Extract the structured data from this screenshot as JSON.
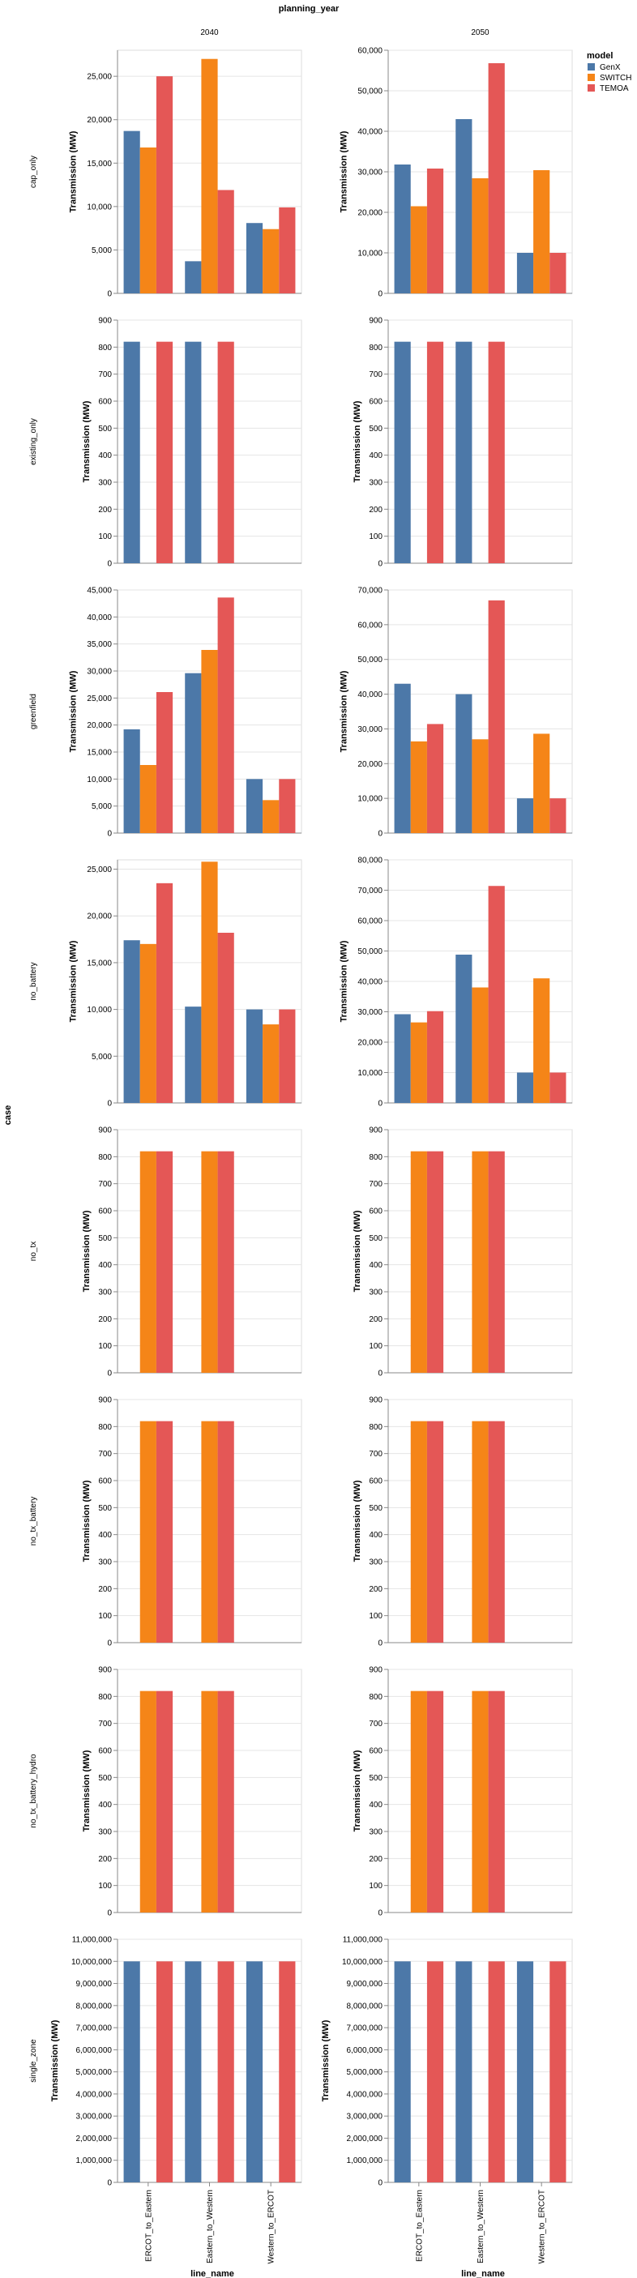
{
  "col_title": "planning_year",
  "row_title": "case",
  "x_title": "line_name",
  "y_title": "Transmission (MW)",
  "legend": {
    "title": "model",
    "items": [
      {
        "label": "GenX",
        "color": "#4C78A8"
      },
      {
        "label": "SWITCH",
        "color": "#F58518"
      },
      {
        "label": "TEMOA",
        "color": "#E45756"
      }
    ]
  },
  "chart_data": {
    "type": "bar",
    "categories": [
      "ERCOT_to_Eastern",
      "Eastern_to_Western",
      "Western_to_ERCOT"
    ],
    "columns": [
      "2040",
      "2050"
    ],
    "series_names": [
      "GenX",
      "SWITCH",
      "TEMOA"
    ],
    "colors": [
      "#4C78A8",
      "#F58518",
      "#E45756"
    ],
    "rows": [
      {
        "case": "cap_only",
        "panels": [
          {
            "ticks": [
              "0",
              "5,000",
              "10,000",
              "15,000",
              "20,000",
              "25,000"
            ],
            "ymax": 28000,
            "values": [
              [
                18700,
                3700,
                8100
              ],
              [
                16800,
                27000,
                7400
              ],
              [
                25000,
                11900,
                9900
              ]
            ]
          },
          {
            "ticks": [
              "0",
              "10,000",
              "20,000",
              "30,000",
              "40,000",
              "50,000",
              "60,000"
            ],
            "ymax": 60000,
            "values": [
              [
                31800,
                43000,
                10000
              ],
              [
                21500,
                28400,
                30400
              ],
              [
                30800,
                56800,
                10000
              ]
            ]
          }
        ]
      },
      {
        "case": "existing_only",
        "panels": [
          {
            "ticks": [
              "0",
              "100",
              "200",
              "300",
              "400",
              "500",
              "600",
              "700",
              "800",
              "900"
            ],
            "ymax": 900,
            "values": [
              [
                820,
                820,
                0
              ],
              [
                0,
                0,
                0
              ],
              [
                820,
                820,
                0
              ]
            ]
          },
          {
            "ticks": [
              "0",
              "100",
              "200",
              "300",
              "400",
              "500",
              "600",
              "700",
              "800",
              "900"
            ],
            "ymax": 900,
            "values": [
              [
                820,
                820,
                0
              ],
              [
                0,
                0,
                0
              ],
              [
                820,
                820,
                0
              ]
            ]
          }
        ]
      },
      {
        "case": "greenfield",
        "panels": [
          {
            "ticks": [
              "0",
              "5,000",
              "10,000",
              "15,000",
              "20,000",
              "25,000",
              "30,000",
              "35,000",
              "40,000",
              "45,000"
            ],
            "ymax": 45000,
            "values": [
              [
                19200,
                29600,
                10000
              ],
              [
                12600,
                33900,
                6100
              ],
              [
                26100,
                43600,
                10000
              ]
            ]
          },
          {
            "ticks": [
              "0",
              "10,000",
              "20,000",
              "30,000",
              "40,000",
              "50,000",
              "60,000",
              "70,000"
            ],
            "ymax": 70000,
            "values": [
              [
                43000,
                40000,
                10000
              ],
              [
                26400,
                27000,
                28600
              ],
              [
                31400,
                67000,
                10000
              ]
            ]
          }
        ]
      },
      {
        "case": "no_battery",
        "panels": [
          {
            "ticks": [
              "0",
              "5,000",
              "10,000",
              "15,000",
              "20,000",
              "25,000"
            ],
            "ymax": 26000,
            "values": [
              [
                17400,
                10300,
                10000
              ],
              [
                17000,
                25800,
                8400
              ],
              [
                23500,
                18200,
                10000
              ]
            ]
          },
          {
            "ticks": [
              "0",
              "10,000",
              "20,000",
              "30,000",
              "40,000",
              "50,000",
              "60,000",
              "70,000",
              "80,000"
            ],
            "ymax": 80000,
            "values": [
              [
                29200,
                48800,
                10000
              ],
              [
                26500,
                38000,
                41000
              ],
              [
                30200,
                71400,
                10000
              ]
            ]
          }
        ]
      },
      {
        "case": "no_tx",
        "panels": [
          {
            "ticks": [
              "0",
              "100",
              "200",
              "300",
              "400",
              "500",
              "600",
              "700",
              "800",
              "900"
            ],
            "ymax": 900,
            "values": [
              [
                0,
                0,
                0
              ],
              [
                820,
                820,
                0
              ],
              [
                820,
                820,
                0
              ]
            ]
          },
          {
            "ticks": [
              "0",
              "100",
              "200",
              "300",
              "400",
              "500",
              "600",
              "700",
              "800",
              "900"
            ],
            "ymax": 900,
            "values": [
              [
                0,
                0,
                0
              ],
              [
                820,
                820,
                0
              ],
              [
                820,
                820,
                0
              ]
            ]
          }
        ]
      },
      {
        "case": "no_tx_battery",
        "panels": [
          {
            "ticks": [
              "0",
              "100",
              "200",
              "300",
              "400",
              "500",
              "600",
              "700",
              "800",
              "900"
            ],
            "ymax": 900,
            "values": [
              [
                0,
                0,
                0
              ],
              [
                820,
                820,
                0
              ],
              [
                820,
                820,
                0
              ]
            ]
          },
          {
            "ticks": [
              "0",
              "100",
              "200",
              "300",
              "400",
              "500",
              "600",
              "700",
              "800",
              "900"
            ],
            "ymax": 900,
            "values": [
              [
                0,
                0,
                0
              ],
              [
                820,
                820,
                0
              ],
              [
                820,
                820,
                0
              ]
            ]
          }
        ]
      },
      {
        "case": "no_tx_battery_hydro",
        "panels": [
          {
            "ticks": [
              "0",
              "100",
              "200",
              "300",
              "400",
              "500",
              "600",
              "700",
              "800",
              "900"
            ],
            "ymax": 900,
            "values": [
              [
                0,
                0,
                0
              ],
              [
                820,
                820,
                0
              ],
              [
                820,
                820,
                0
              ]
            ]
          },
          {
            "ticks": [
              "0",
              "100",
              "200",
              "300",
              "400",
              "500",
              "600",
              "700",
              "800",
              "900"
            ],
            "ymax": 900,
            "values": [
              [
                0,
                0,
                0
              ],
              [
                820,
                820,
                0
              ],
              [
                820,
                820,
                0
              ]
            ]
          }
        ]
      },
      {
        "case": "single_zone",
        "panels": [
          {
            "ticks": [
              "0",
              "1,000,000",
              "2,000,000",
              "3,000,000",
              "4,000,000",
              "5,000,000",
              "6,000,000",
              "7,000,000",
              "8,000,000",
              "9,000,000",
              "10,000,000",
              "11,000,000"
            ],
            "ymax": 11000000,
            "values": [
              [
                10000000,
                10000000,
                10000000
              ],
              [
                0,
                0,
                0
              ],
              [
                10000000,
                10000000,
                10000000
              ]
            ]
          },
          {
            "ticks": [
              "0",
              "1,000,000",
              "2,000,000",
              "3,000,000",
              "4,000,000",
              "5,000,000",
              "6,000,000",
              "7,000,000",
              "8,000,000",
              "9,000,000",
              "10,000,000",
              "11,000,000"
            ],
            "ymax": 11000000,
            "values": [
              [
                10000000,
                10000000,
                10000000
              ],
              [
                0,
                0,
                0
              ],
              [
                10000000,
                10000000,
                10000000
              ]
            ]
          }
        ]
      }
    ]
  }
}
